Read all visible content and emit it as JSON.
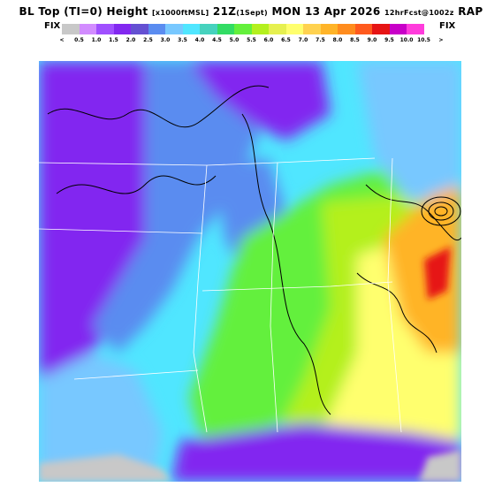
{
  "header": {
    "title_main": "BL Top (TI=0) Height",
    "title_units": "[x1000ftMSL]",
    "title_time": "21Z",
    "title_day": "(1Sept)",
    "title_date": "MON 13 Apr 2026",
    "title_run": "12hrFcst@1002z",
    "title_model": "RAP"
  },
  "legend": {
    "left_label": "FIX",
    "right_label": "FIX",
    "lt_symbol": "<",
    "gt_symbol": ">",
    "ticks": [
      "0.5",
      "1.0",
      "1.5",
      "2.0",
      "2.5",
      "3.0",
      "3.5",
      "4.0",
      "4.5",
      "5.0",
      "5.5",
      "6.0",
      "6.5",
      "7.0",
      "7.5",
      "8.0",
      "8.5",
      "9.0",
      "9.5",
      "10.0",
      "10.5"
    ],
    "colors": [
      "#c8c8c8",
      "#d28cff",
      "#a050ff",
      "#8228f0",
      "#6450d2",
      "#5a8cf0",
      "#78c8ff",
      "#50e6ff",
      "#46d2be",
      "#32dc64",
      "#64f03c",
      "#b4f01e",
      "#e6f050",
      "#ffff6e",
      "#ffd250",
      "#ffb428",
      "#ff8c1e",
      "#ff5a1e",
      "#e61414",
      "#c800c8",
      "#ff3cdc"
    ]
  },
  "map": {
    "field": "BL Top Height",
    "regions_colors": {
      "west": "#8228f0",
      "central": "#50e6ff",
      "east": "#ffff6e",
      "southeast": "#ffb428",
      "peak": "#e61414",
      "gulf": "#8228f0",
      "nodata": "#c8c8c8"
    }
  }
}
